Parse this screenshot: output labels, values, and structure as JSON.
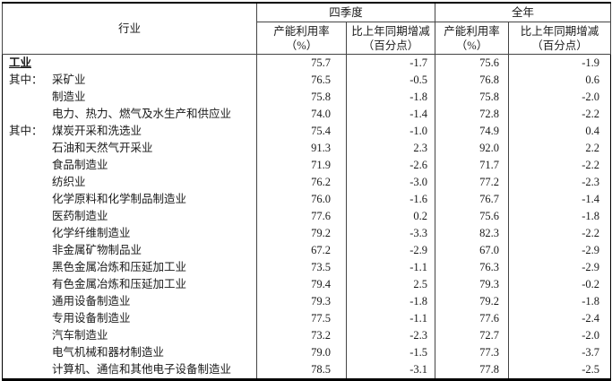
{
  "table": {
    "header": {
      "industry": "行业",
      "groups": [
        {
          "label": "四季度",
          "sub": [
            [
              "产能利用率",
              "（%）"
            ],
            [
              "比上年同期增减",
              "（百分点）"
            ]
          ]
        },
        {
          "label": "全年",
          "sub": [
            [
              "产能利用率",
              "（%）"
            ],
            [
              "比上年同期增减",
              "（百分点）"
            ]
          ]
        }
      ]
    },
    "rows": [
      {
        "prefix": "",
        "indent": false,
        "emphasis": true,
        "label": "工业",
        "q4_rate": "75.7",
        "q4_chg": "-1.7",
        "yr_rate": "75.6",
        "yr_chg": "-1.9"
      },
      {
        "prefix": "其中：",
        "indent": true,
        "emphasis": false,
        "label": "采矿业",
        "q4_rate": "76.5",
        "q4_chg": "-0.5",
        "yr_rate": "76.8",
        "yr_chg": "0.6"
      },
      {
        "prefix": "",
        "indent": true,
        "emphasis": false,
        "label": "制造业",
        "q4_rate": "75.8",
        "q4_chg": "-1.8",
        "yr_rate": "75.8",
        "yr_chg": "-2.0"
      },
      {
        "prefix": "",
        "indent": true,
        "emphasis": false,
        "label": "电力、热力、燃气及水生产和供应业",
        "q4_rate": "74.0",
        "q4_chg": "-1.4",
        "yr_rate": "72.8",
        "yr_chg": "-2.2"
      },
      {
        "prefix": "其中：",
        "indent": true,
        "emphasis": false,
        "label": "煤炭开采和洗选业",
        "q4_rate": "75.4",
        "q4_chg": "-1.0",
        "yr_rate": "74.9",
        "yr_chg": "0.4"
      },
      {
        "prefix": "",
        "indent": true,
        "emphasis": false,
        "label": "石油和天然气开采业",
        "q4_rate": "91.3",
        "q4_chg": "2.3",
        "yr_rate": "92.0",
        "yr_chg": "2.2"
      },
      {
        "prefix": "",
        "indent": true,
        "emphasis": false,
        "label": "食品制造业",
        "q4_rate": "71.9",
        "q4_chg": "-2.6",
        "yr_rate": "71.7",
        "yr_chg": "-2.2"
      },
      {
        "prefix": "",
        "indent": true,
        "emphasis": false,
        "label": "纺织业",
        "q4_rate": "76.2",
        "q4_chg": "-3.0",
        "yr_rate": "77.2",
        "yr_chg": "-2.3"
      },
      {
        "prefix": "",
        "indent": true,
        "emphasis": false,
        "label": "化学原料和化学制品制造业",
        "q4_rate": "76.0",
        "q4_chg": "-1.6",
        "yr_rate": "76.7",
        "yr_chg": "-1.4"
      },
      {
        "prefix": "",
        "indent": true,
        "emphasis": false,
        "label": "医药制造业",
        "q4_rate": "77.6",
        "q4_chg": "0.2",
        "yr_rate": "75.6",
        "yr_chg": "-1.8"
      },
      {
        "prefix": "",
        "indent": true,
        "emphasis": false,
        "label": "化学纤维制造业",
        "q4_rate": "79.2",
        "q4_chg": "-3.3",
        "yr_rate": "82.3",
        "yr_chg": "-2.2"
      },
      {
        "prefix": "",
        "indent": true,
        "emphasis": false,
        "label": "非金属矿物制品业",
        "q4_rate": "67.2",
        "q4_chg": "-2.9",
        "yr_rate": "67.0",
        "yr_chg": "-2.9"
      },
      {
        "prefix": "",
        "indent": true,
        "emphasis": false,
        "label": "黑色金属冶炼和压延加工业",
        "q4_rate": "73.5",
        "q4_chg": "-1.1",
        "yr_rate": "76.3",
        "yr_chg": "-2.9"
      },
      {
        "prefix": "",
        "indent": true,
        "emphasis": false,
        "label": "有色金属冶炼和压延加工业",
        "q4_rate": "79.4",
        "q4_chg": "2.5",
        "yr_rate": "79.3",
        "yr_chg": "-0.2"
      },
      {
        "prefix": "",
        "indent": true,
        "emphasis": false,
        "label": "通用设备制造业",
        "q4_rate": "79.3",
        "q4_chg": "-1.8",
        "yr_rate": "79.2",
        "yr_chg": "-1.8"
      },
      {
        "prefix": "",
        "indent": true,
        "emphasis": false,
        "label": "专用设备制造业",
        "q4_rate": "77.5",
        "q4_chg": "-1.1",
        "yr_rate": "77.6",
        "yr_chg": "-2.4"
      },
      {
        "prefix": "",
        "indent": true,
        "emphasis": false,
        "label": "汽车制造业",
        "q4_rate": "73.2",
        "q4_chg": "-2.3",
        "yr_rate": "72.7",
        "yr_chg": "-2.0"
      },
      {
        "prefix": "",
        "indent": true,
        "emphasis": false,
        "label": "电气机械和器材制造业",
        "q4_rate": "79.0",
        "q4_chg": "-1.5",
        "yr_rate": "77.3",
        "yr_chg": "-3.7"
      },
      {
        "prefix": "",
        "indent": true,
        "emphasis": false,
        "label": "计算机、通信和其他电子设备制造业",
        "q4_rate": "78.5",
        "q4_chg": "-3.1",
        "yr_rate": "77.8",
        "yr_chg": "-2.5"
      }
    ]
  }
}
